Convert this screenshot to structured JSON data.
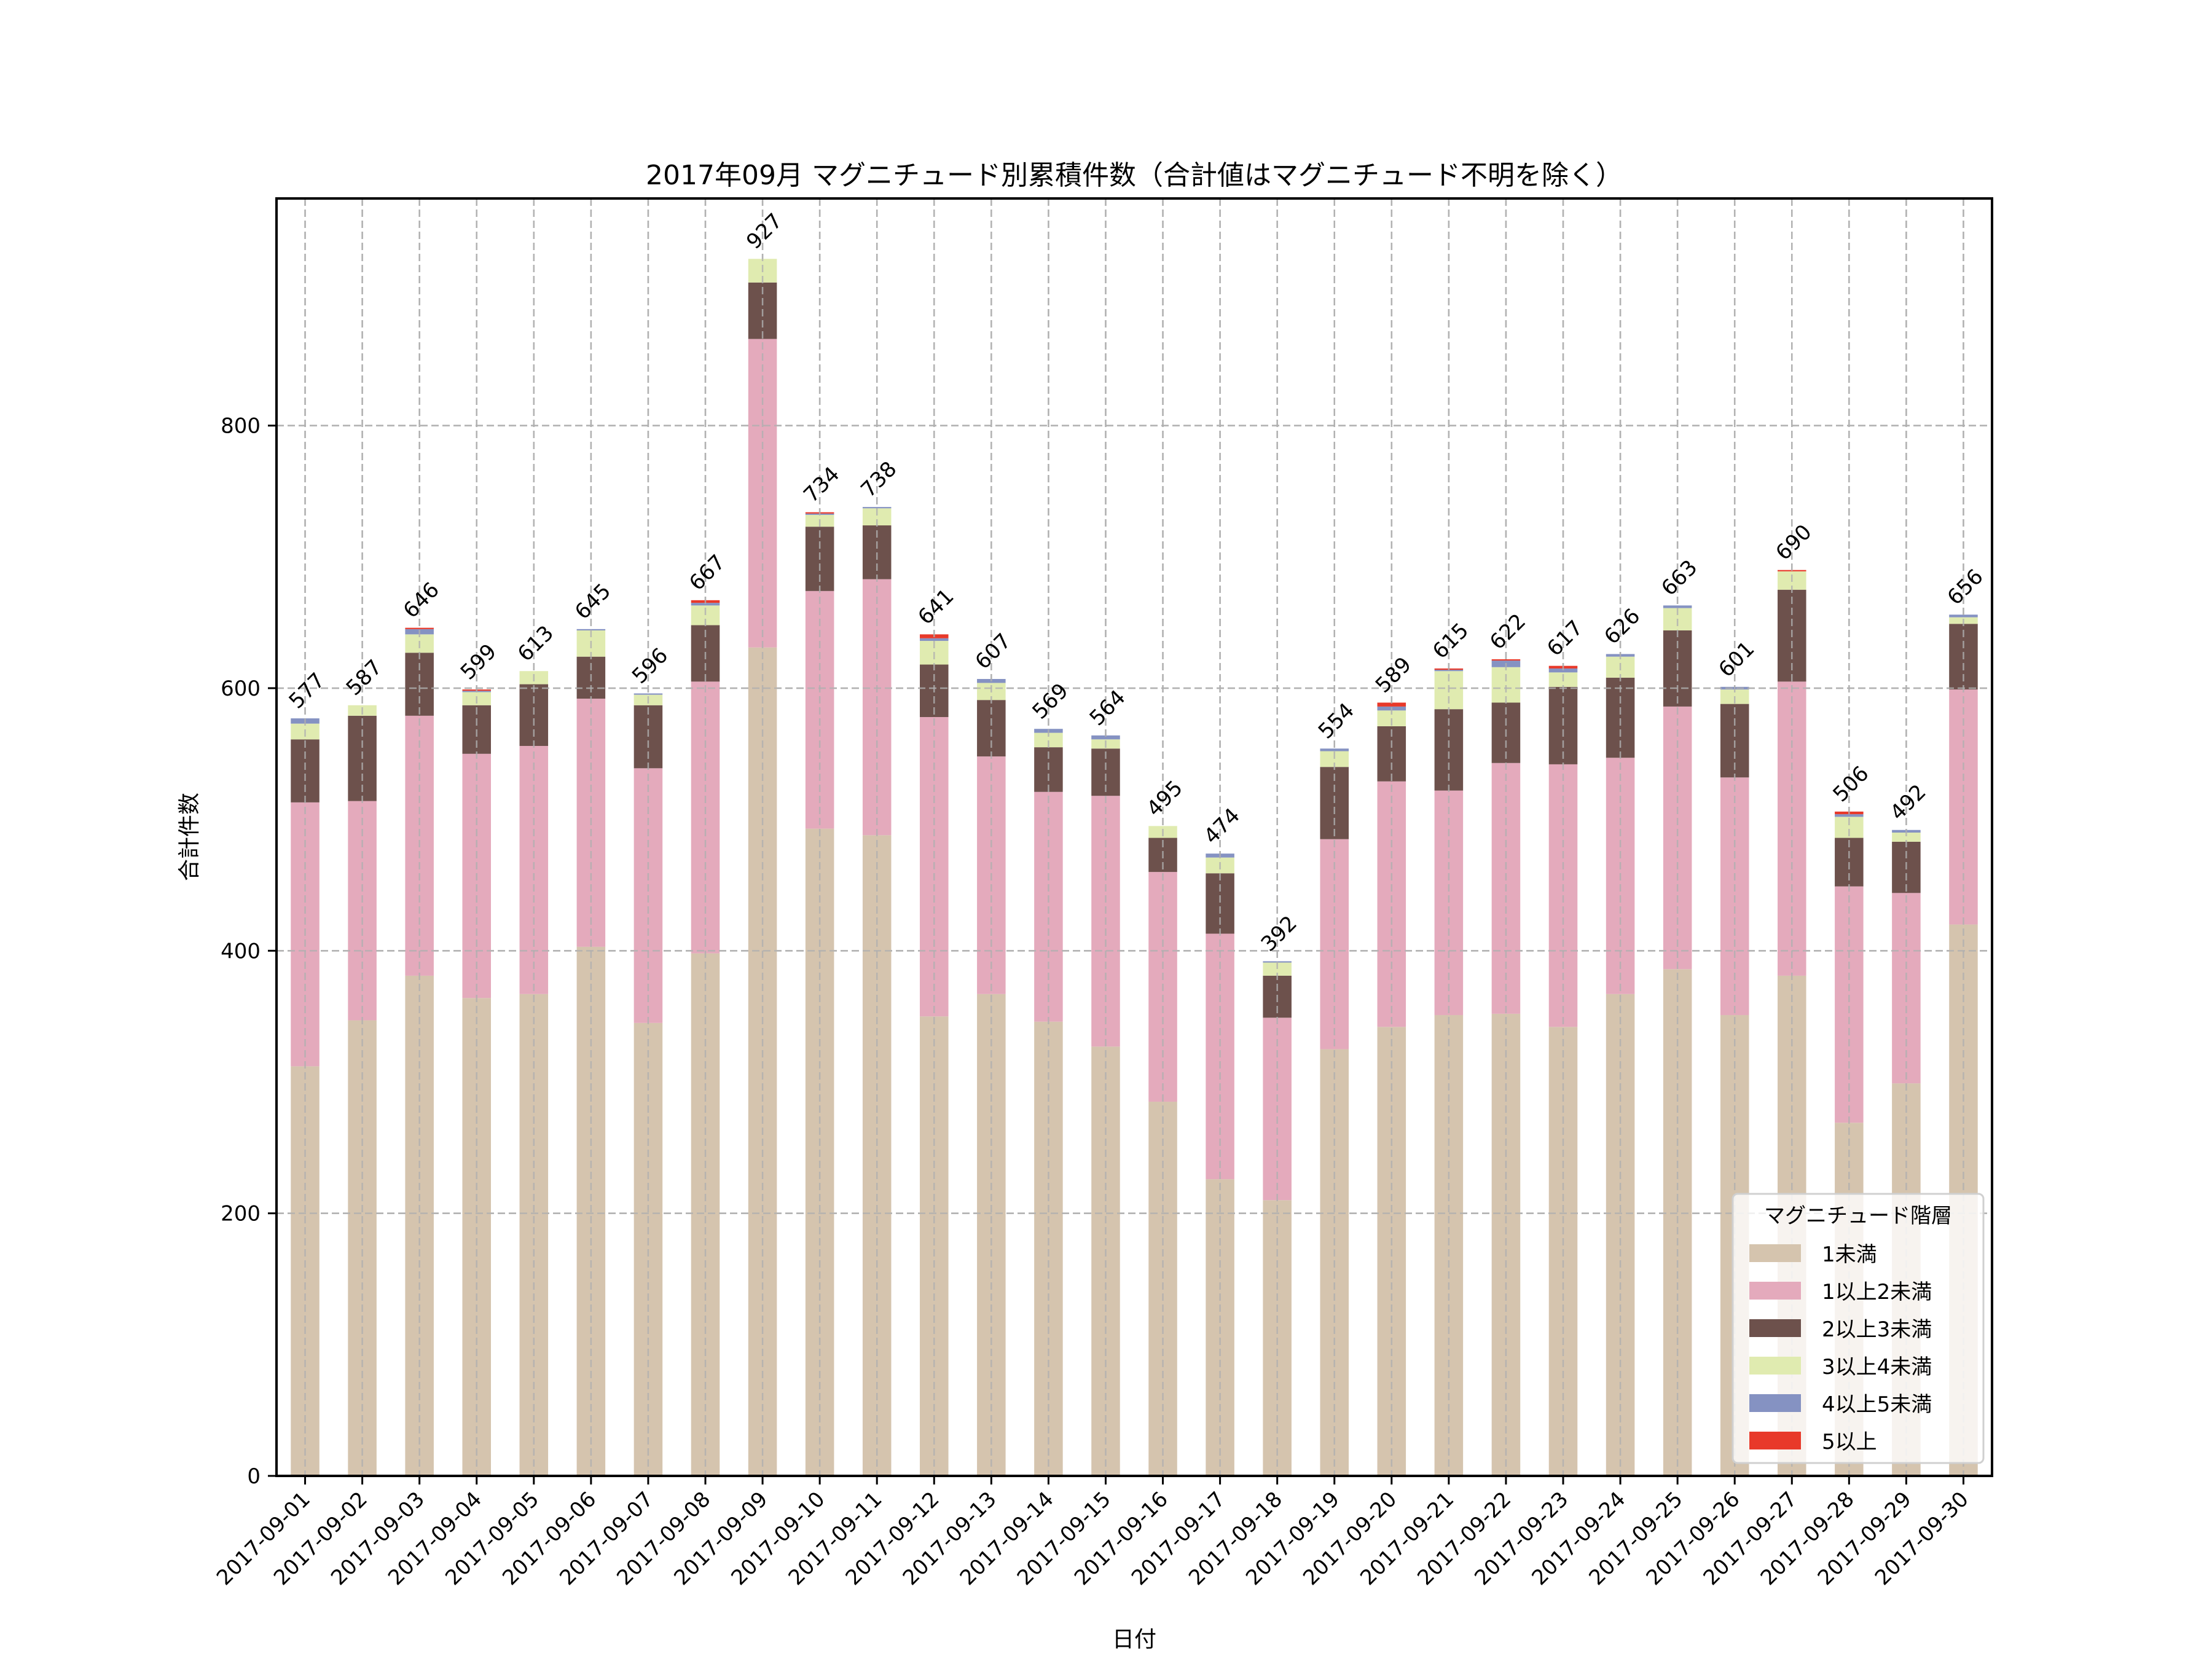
{
  "chart_data": {
    "type": "bar",
    "stacked": true,
    "title": "2017年09月 マグニチュード別累積件数（合計値はマグニチュード不明を除く）",
    "xlabel": "日付",
    "ylabel": "合計件数",
    "ylim": [
      0,
      973
    ],
    "yticks": [
      0,
      200,
      400,
      600,
      800
    ],
    "grid": true,
    "legend": {
      "title": "マグニチュード階層",
      "position": "lower-right"
    },
    "categories": [
      "2017-09-01",
      "2017-09-02",
      "2017-09-03",
      "2017-09-04",
      "2017-09-05",
      "2017-09-06",
      "2017-09-07",
      "2017-09-08",
      "2017-09-09",
      "2017-09-10",
      "2017-09-11",
      "2017-09-12",
      "2017-09-13",
      "2017-09-14",
      "2017-09-15",
      "2017-09-16",
      "2017-09-17",
      "2017-09-18",
      "2017-09-19",
      "2017-09-20",
      "2017-09-21",
      "2017-09-22",
      "2017-09-23",
      "2017-09-24",
      "2017-09-25",
      "2017-09-26",
      "2017-09-27",
      "2017-09-28",
      "2017-09-29",
      "2017-09-30"
    ],
    "series": [
      {
        "name": "1未満",
        "color": "#D5C4AE",
        "values": [
          312,
          347,
          381,
          364,
          367,
          403,
          345,
          398,
          631,
          493,
          488,
          350,
          367,
          346,
          327,
          285,
          226,
          210,
          325,
          342,
          351,
          352,
          342,
          367,
          386,
          351,
          381,
          269,
          299,
          420
        ]
      },
      {
        "name": "1以上2未満",
        "color": "#E4AABC",
        "values": [
          201,
          167,
          198,
          186,
          189,
          189,
          194,
          207,
          235,
          181,
          195,
          228,
          181,
          175,
          191,
          175,
          187,
          139,
          160,
          187,
          171,
          191,
          200,
          180,
          200,
          181,
          224,
          180,
          145,
          179
        ]
      },
      {
        "name": "2以上3未満",
        "color": "#6D514C",
        "values": [
          48,
          65,
          48,
          37,
          47,
          32,
          48,
          43,
          43,
          49,
          41,
          40,
          43,
          34,
          36,
          26,
          46,
          32,
          55,
          42,
          62,
          46,
          59,
          61,
          58,
          56,
          70,
          37,
          39,
          50
        ]
      },
      {
        "name": "3以上4未満",
        "color": "#E0EBB0",
        "values": [
          12,
          8,
          14,
          10,
          10,
          20,
          8,
          15,
          18,
          9,
          13,
          18,
          13,
          11,
          7,
          9,
          12,
          10,
          12,
          12,
          29,
          27,
          11,
          16,
          17,
          11,
          14,
          16,
          7,
          5
        ]
      },
      {
        "name": "4以上5未満",
        "color": "#8592C2",
        "values": [
          4,
          0,
          4,
          1,
          0,
          1,
          1,
          2,
          0,
          1,
          1,
          2,
          3,
          3,
          3,
          0,
          3,
          1,
          2,
          3,
          1,
          5,
          3,
          2,
          2,
          2,
          0,
          2,
          2,
          2
        ]
      },
      {
        "name": "5以上",
        "color": "#E8392A",
        "values": [
          0,
          0,
          1,
          1,
          0,
          0,
          0,
          2,
          0,
          1,
          0,
          3,
          0,
          0,
          0,
          0,
          0,
          0,
          0,
          3,
          1,
          1,
          2,
          0,
          0,
          0,
          1,
          2,
          0,
          0
        ]
      }
    ],
    "totals": [
      577,
      587,
      646,
      599,
      613,
      645,
      596,
      667,
      927,
      734,
      738,
      641,
      607,
      569,
      564,
      495,
      474,
      392,
      554,
      589,
      615,
      622,
      617,
      626,
      663,
      601,
      690,
      506,
      492,
      656
    ]
  }
}
